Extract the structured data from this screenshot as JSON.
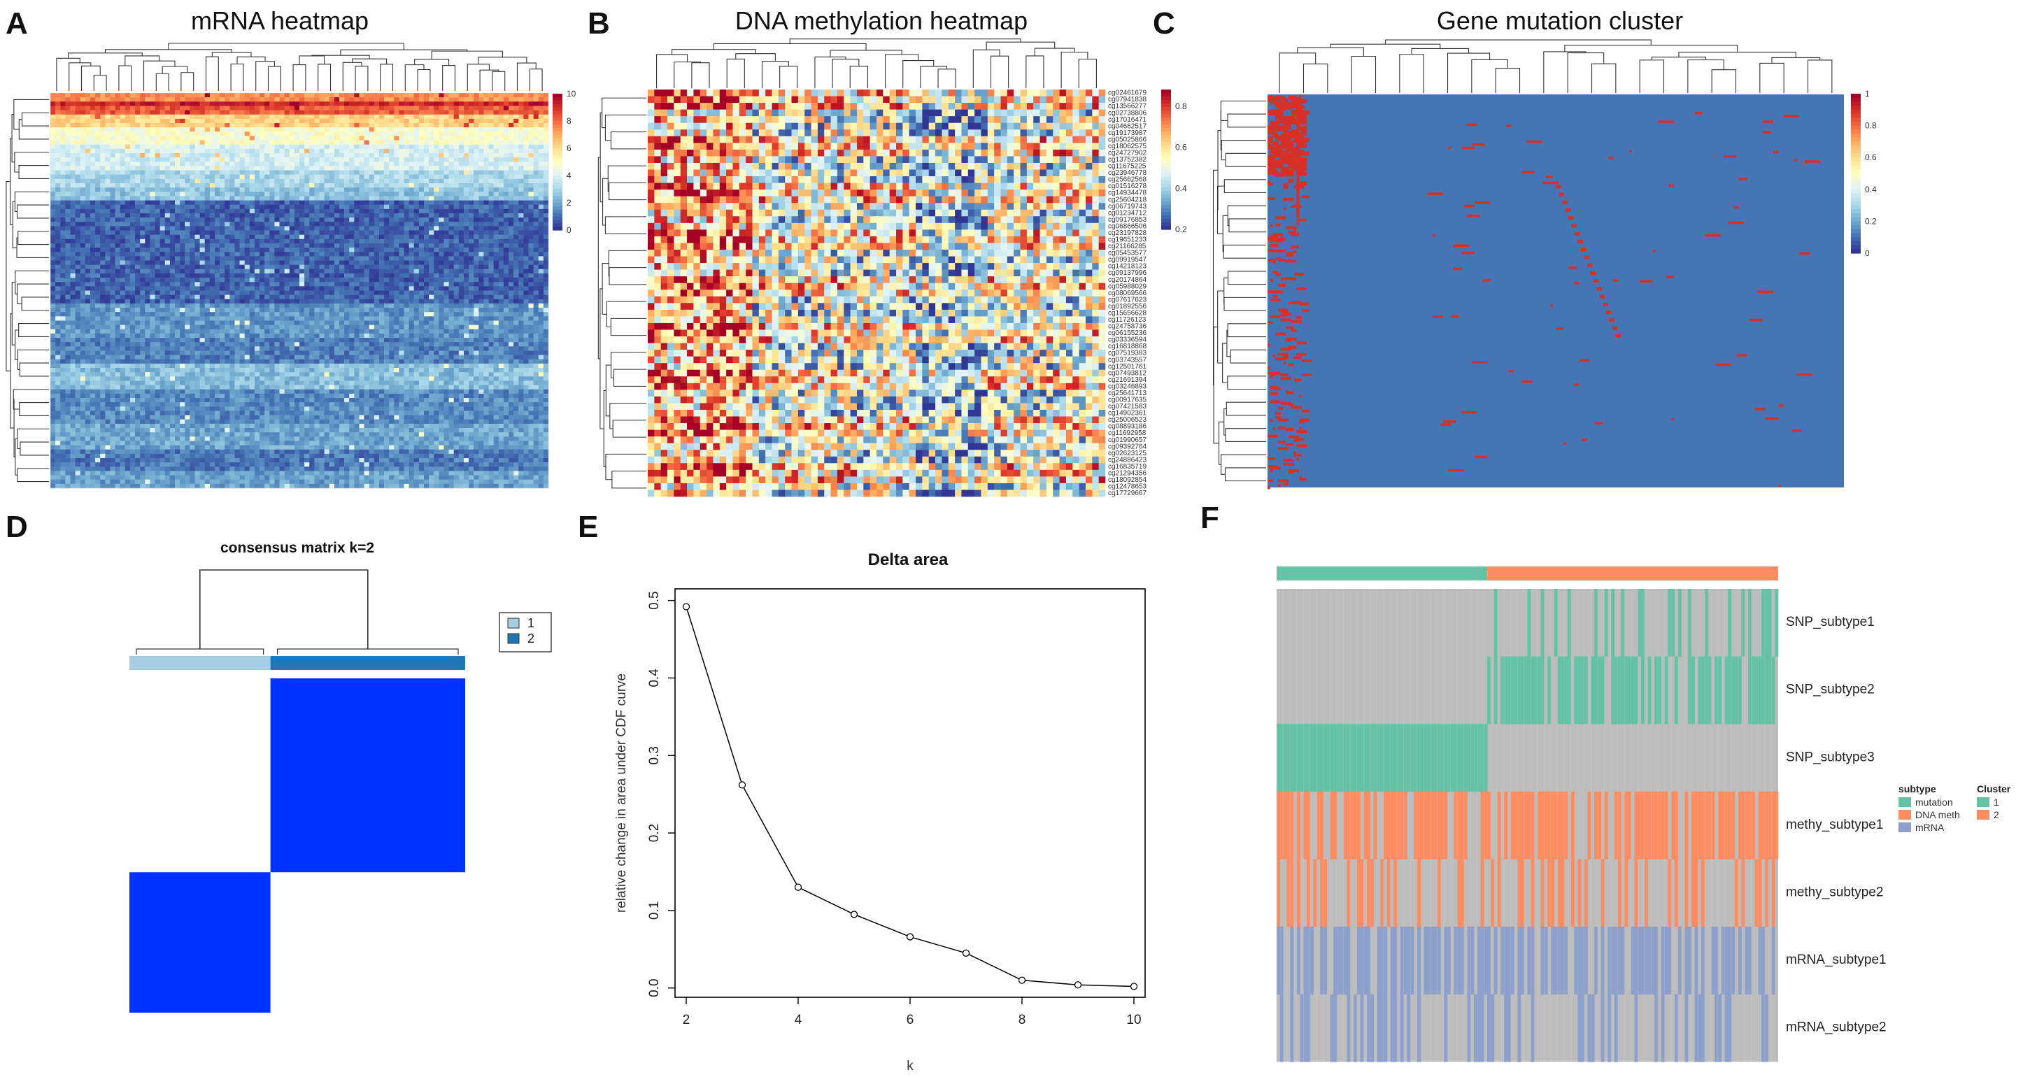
{
  "panel_letters": {
    "A": "A",
    "B": "B",
    "C": "C",
    "D": "D",
    "E": "E",
    "F": "F"
  },
  "colors": {
    "heat_low": "#4575b4",
    "heat_mid": "#ffffbf",
    "heat_high": "#d73027",
    "consensus_blue": "#0033ff",
    "mutation": "#66c2a5",
    "dna_meth": "#fc8d62",
    "mrna": "#8da0cb",
    "grey": "#bdbdbd"
  },
  "chart_data": [
    {
      "type": "heatmap",
      "title": "mRNA heatmap",
      "colorbar": {
        "ticks": [
          "10",
          "8",
          "6",
          "4",
          "2",
          "0"
        ],
        "range": [
          0,
          10
        ]
      },
      "row_bands": [
        {
          "rows": 2,
          "value": 7.5
        },
        {
          "rows": 1,
          "value": 9.2
        },
        {
          "rows": 2,
          "value": 8.3
        },
        {
          "rows": 3,
          "value": 6.2
        },
        {
          "rows": 4,
          "value": 4.8
        },
        {
          "rows": 6,
          "value": 3.8
        },
        {
          "rows": 4,
          "value": 3.0
        },
        {
          "rows": 3,
          "value": 2.5
        },
        {
          "rows": 24,
          "value": 0.7
        },
        {
          "rows": 8,
          "value": 1.6
        },
        {
          "rows": 6,
          "value": 1.2
        },
        {
          "rows": 6,
          "value": 2.4
        },
        {
          "rows": 8,
          "value": 1.4
        },
        {
          "rows": 6,
          "value": 1.9
        },
        {
          "rows": 5,
          "value": 1.1
        },
        {
          "rows": 4,
          "value": 1.8
        }
      ],
      "columns": 100
    },
    {
      "type": "heatmap",
      "title": "DNA  methylation heatmap",
      "colorbar": {
        "ticks": [
          "0.8",
          "0.6",
          "0.4",
          "0.2"
        ],
        "range": [
          0,
          1
        ]
      },
      "row_labels": [
        "cg02461679",
        "cg07941838",
        "cg13566277",
        "cg02738806",
        "cg17016471",
        "cg04662517",
        "cg19173987",
        "cg05025866",
        "cg18062575",
        "cg24727902",
        "cg13752382",
        "cg11675225",
        "cg23946778",
        "cg25662568",
        "cg01516278",
        "cg14934478",
        "cg25604218",
        "cg06719743",
        "cg01234712",
        "cg09176853",
        "cg06866506",
        "cg23197828",
        "cg19651233",
        "cg21166285",
        "cg05453577",
        "cg09919547",
        "cg14218123",
        "cg09137996",
        "cg20174864",
        "cg05988029",
        "cg08069566",
        "cg07617623",
        "cg01892556",
        "cg15656628",
        "cg11726123",
        "cg24758736",
        "cg06155236",
        "cg03336594",
        "cg16818868",
        "cg07519383",
        "cg03743557",
        "cg12501761",
        "cg07493812",
        "cg21691394",
        "cg03246893",
        "cg25641713",
        "cg00917635",
        "cg07421583",
        "cg14902361",
        "cg25006523",
        "cg08893186",
        "cg11692958",
        "cg01990657",
        "cg09392764",
        "cg02623125",
        "cg24886423",
        "cg16835719",
        "cg21294356",
        "cg18092854",
        "cg12478653",
        "cg17729667"
      ],
      "columns": 70
    },
    {
      "type": "heatmap",
      "title": "Gene mutation cluster",
      "colorbar": {
        "ticks": [
          "1",
          "0.8",
          "0.6",
          "0.4",
          "0.2",
          "0"
        ],
        "range": [
          0,
          1
        ]
      },
      "mutation_density": "sparse",
      "columns": 220
    },
    {
      "type": "heatmap",
      "title": "consensus matrix k=2",
      "legend": [
        {
          "label": "1",
          "color": "#a6cee3"
        },
        {
          "label": "2",
          "color": "#1f78b4"
        }
      ],
      "clusters": [
        {
          "name": "1",
          "fraction": 0.42
        },
        {
          "name": "2",
          "fraction": 0.58
        }
      ]
    },
    {
      "type": "line",
      "title": "Delta area",
      "xlabel": "k",
      "ylabel": "relative change in area under CDF curve",
      "x": [
        2,
        3,
        4,
        5,
        6,
        7,
        8,
        9,
        10
      ],
      "y": [
        0.492,
        0.262,
        0.13,
        0.095,
        0.066,
        0.045,
        0.01,
        0.004,
        0.002
      ],
      "xlim": [
        1.8,
        10.2
      ],
      "ylim": [
        -0.012,
        0.515
      ],
      "xticks": [
        "2",
        "4",
        "6",
        "8",
        "10"
      ],
      "yticks": [
        "0.0",
        "0.1",
        "0.2",
        "0.3",
        "0.4",
        "0.5"
      ]
    },
    {
      "type": "heatmap",
      "title": "",
      "rows": [
        "SNP_subtype1",
        "SNP_subtype2",
        "SNP_subtype3",
        "methy_subtype1",
        "methy_subtype2",
        "mRNA_subtype1",
        "mRNA_subtype2"
      ],
      "cluster_split": 0.42,
      "legend": {
        "subtype_title": "subtype",
        "subtypes": [
          {
            "label": "mutation",
            "color": "#66c2a5"
          },
          {
            "label": "DNA meth",
            "color": "#fc8d62"
          },
          {
            "label": "mRNA",
            "color": "#8da0cb"
          }
        ],
        "cluster_title": "Cluster",
        "clusters": [
          {
            "label": "1",
            "color": "#66c2a5"
          },
          {
            "label": "2",
            "color": "#fc8d62"
          }
        ]
      }
    }
  ]
}
